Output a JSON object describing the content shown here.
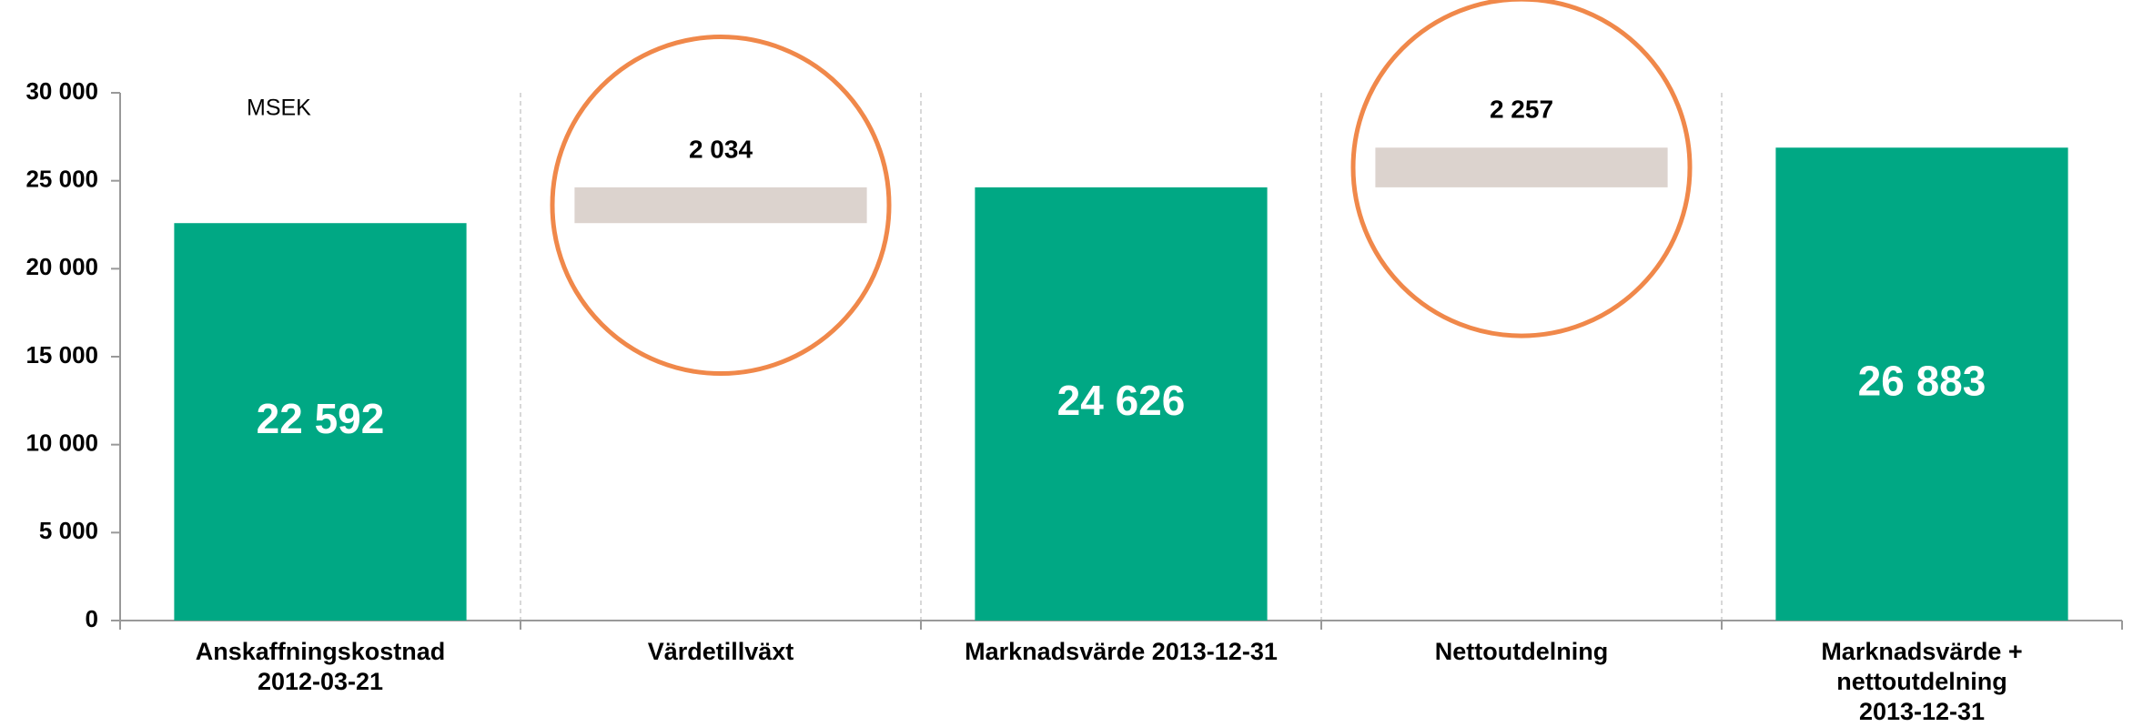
{
  "chart_data": {
    "type": "waterfall",
    "annotation": "MSEK",
    "categories": [
      [
        "Anskaffningskostnad",
        "2012-03-21"
      ],
      [
        "Värdetillväxt"
      ],
      [
        "Marknadsvärde 2013-12-31"
      ],
      [
        "Nettoutdelning"
      ],
      [
        "Marknadsvärde +",
        "nettoutdelning",
        "2013-12-31"
      ]
    ],
    "values": [
      22592,
      2034,
      24626,
      2257,
      26883
    ],
    "value_labels": [
      "22 592",
      "2 034",
      "24 626",
      "2 257",
      "26 883"
    ],
    "measures": [
      "absolute",
      "relative",
      "absolute",
      "relative",
      "absolute"
    ],
    "colors": {
      "absolute": "#00a884",
      "relative": "#dcd3ce"
    },
    "highlight_color": "#f0884a",
    "ylim": [
      0,
      30000
    ],
    "yticks": [
      0,
      {
        "value": 5000,
        "label": "5 000"
      },
      {
        "value": 10000,
        "label": "10 000"
      },
      {
        "value": 15000,
        "label": "15 000"
      },
      {
        "value": 20000,
        "label": "20 000"
      },
      {
        "value": 25000,
        "label": "25 000"
      },
      {
        "value": 30000,
        "label": "30 000"
      }
    ]
  }
}
